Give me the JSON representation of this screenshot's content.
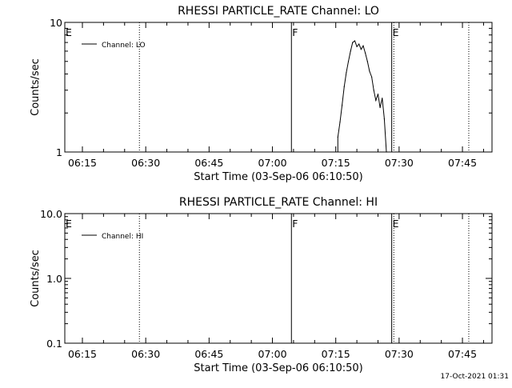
{
  "timestamp": "17-Oct-2021 01:31",
  "chart_data": [
    {
      "type": "line",
      "title": "RHESSI PARTICLE_RATE Channel: LO",
      "xlabel": "Start Time (03-Sep-06 06:10:50)",
      "ylabel": "Counts/sec",
      "y_scale": "log",
      "xlim": [
        "06:10:50",
        "07:52:00"
      ],
      "ylim": [
        1,
        10
      ],
      "x_ticks": [
        "06:15",
        "06:30",
        "06:45",
        "07:00",
        "07:15",
        "07:30",
        "07:45"
      ],
      "y_ticks": [
        "1",
        "10"
      ],
      "legend": {
        "placement": "top-left",
        "entries": [
          "Channel: LO"
        ]
      },
      "markers": [
        {
          "label": "E",
          "time": "06:10:50",
          "style": "solid"
        },
        {
          "label": "",
          "time": "06:28:30",
          "style": "dotted"
        },
        {
          "label": "F",
          "time": "07:04:30",
          "style": "solid"
        },
        {
          "label": "E",
          "time": "07:28:15",
          "style": "solid"
        },
        {
          "label": "",
          "time": "07:28:45",
          "style": "dotted"
        },
        {
          "label": "",
          "time": "07:46:30",
          "style": "dotted"
        }
      ],
      "series": [
        {
          "name": "Channel: LO",
          "x": [
            "07:15:30",
            "07:16:00",
            "07:16:30",
            "07:17:00",
            "07:17:30",
            "07:18:00",
            "07:18:30",
            "07:19:00",
            "07:19:30",
            "07:20:00",
            "07:20:30",
            "07:21:00",
            "07:21:30",
            "07:22:00",
            "07:22:30",
            "07:23:00",
            "07:23:30",
            "07:24:00",
            "07:24:30",
            "07:25:00",
            "07:25:30",
            "07:26:00",
            "07:26:30",
            "07:27:00"
          ],
          "values": [
            1.3,
            1.7,
            2.3,
            3.2,
            4.1,
            5.0,
            6.0,
            7.0,
            7.2,
            6.5,
            6.8,
            6.2,
            6.6,
            5.8,
            5.0,
            4.2,
            3.8,
            3.0,
            2.5,
            2.8,
            2.2,
            2.6,
            1.8,
            1.0
          ]
        }
      ]
    },
    {
      "type": "line",
      "title": "RHESSI PARTICLE_RATE Channel: HI",
      "xlabel": "Start Time (03-Sep-06 06:10:50)",
      "ylabel": "Counts/sec",
      "y_scale": "log",
      "xlim": [
        "06:10:50",
        "07:52:00"
      ],
      "ylim": [
        0.1,
        10
      ],
      "x_ticks": [
        "06:15",
        "06:30",
        "06:45",
        "07:00",
        "07:15",
        "07:30",
        "07:45"
      ],
      "y_ticks": [
        "0.1",
        "1.0",
        "10.0"
      ],
      "legend": {
        "placement": "top-left",
        "entries": [
          "Channel: HI"
        ]
      },
      "markers": [
        {
          "label": "E",
          "time": "06:10:50",
          "style": "solid"
        },
        {
          "label": "",
          "time": "06:28:30",
          "style": "dotted"
        },
        {
          "label": "F",
          "time": "07:04:30",
          "style": "solid"
        },
        {
          "label": "E",
          "time": "07:28:15",
          "style": "solid"
        },
        {
          "label": "",
          "time": "07:28:45",
          "style": "dotted"
        },
        {
          "label": "",
          "time": "07:46:30",
          "style": "dotted"
        }
      ],
      "series": [
        {
          "name": "Channel: HI",
          "x": [],
          "values": []
        }
      ]
    }
  ]
}
